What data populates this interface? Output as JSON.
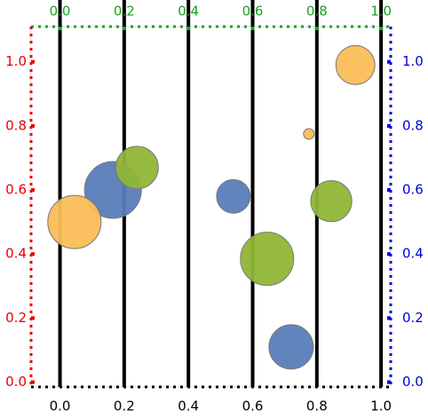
{
  "chart_data": {
    "type": "bubble",
    "xlim": [
      -0.09,
      1.03
    ],
    "ylim": [
      -0.015,
      1.11
    ],
    "x2lim": [
      -0.09,
      1.03
    ],
    "y2lim": [
      -0.015,
      1.11
    ],
    "xticks": [
      {
        "value": 0,
        "label": "0.0"
      },
      {
        "value": 0.2,
        "label": "0.2"
      },
      {
        "value": 0.4,
        "label": "0.4"
      },
      {
        "value": 0.6,
        "label": "0.6"
      },
      {
        "value": 0.8,
        "label": "0.8"
      },
      {
        "value": 1,
        "label": "1.0"
      }
    ],
    "x2ticks": [
      {
        "value": 0,
        "label": "0.0"
      },
      {
        "value": 0.2,
        "label": "0.2"
      },
      {
        "value": 0.4,
        "label": "0.4"
      },
      {
        "value": 0.6,
        "label": "0.6"
      },
      {
        "value": 0.8,
        "label": "0.8"
      },
      {
        "value": 1,
        "label": "1.0"
      }
    ],
    "yticks": [
      {
        "value": 0,
        "label": "0.0"
      },
      {
        "value": 0.2,
        "label": "0.2"
      },
      {
        "value": 0.4,
        "label": "0.4"
      },
      {
        "value": 0.6,
        "label": "0.6"
      },
      {
        "value": 0.8,
        "label": "0.8"
      },
      {
        "value": 1,
        "label": "1.0"
      }
    ],
    "y2ticks": [
      {
        "value": 0,
        "label": "0.0"
      },
      {
        "value": 0.2,
        "label": "0.2"
      },
      {
        "value": 0.4,
        "label": "0.4"
      },
      {
        "value": 0.6,
        "label": "0.6"
      },
      {
        "value": 0.8,
        "label": "0.8"
      },
      {
        "value": 1,
        "label": "1.0"
      }
    ],
    "axis_colors": {
      "bottom": "#000000",
      "left": "#e60000",
      "top": "#1aa31a",
      "right": "#0000d9"
    },
    "series": [
      {
        "color": "#5a7db8",
        "x": [
          0.165,
          0.54,
          0.72
        ],
        "values": [
          0.6,
          0.58,
          0.11
        ],
        "size": [
          1.0,
          0.35,
          0.61
        ]
      },
      {
        "color": "#8fb635",
        "x": [
          0.24,
          0.645,
          0.845
        ],
        "values": [
          0.67,
          0.385,
          0.565
        ],
        "size": [
          0.56,
          0.88,
          0.52
        ]
      },
      {
        "color": "#fbbd57",
        "x": [
          0.045,
          0.92,
          0.775
        ],
        "values": [
          0.5,
          0.99,
          0.775
        ],
        "size": [
          0.88,
          0.47,
          0.035
        ]
      }
    ]
  }
}
